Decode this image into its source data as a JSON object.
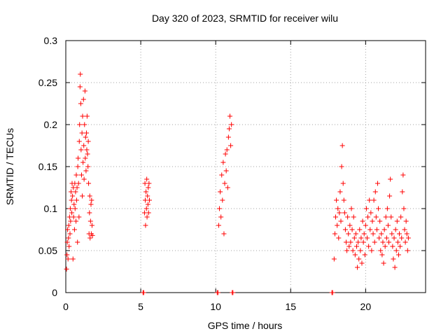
{
  "chart_data": {
    "type": "scatter",
    "title": "Day 320 of 2023, SRMTID for receiver wilu",
    "xlabel": "GPS time / hours",
    "ylabel": "SRMTID / TECUs",
    "xlim": [
      0,
      24
    ],
    "ylim": [
      0,
      0.3
    ],
    "x_ticks": [
      0,
      5,
      10,
      15,
      20
    ],
    "y_ticks": [
      0,
      0.05,
      0.1,
      0.15,
      0.2,
      0.25,
      0.3
    ],
    "x_tick_labels": [
      "0",
      "5",
      "10",
      "15",
      "20"
    ],
    "y_tick_labels": [
      "0",
      "0.05",
      "0.1",
      "0.15",
      "0.2",
      "0.25",
      "0.3"
    ],
    "grid": true,
    "marker": "+",
    "color": "#ff0000",
    "series": [
      {
        "name": "SRMTID",
        "points": [
          [
            0.05,
            0.028
          ],
          [
            0.08,
            0.045
          ],
          [
            0.1,
            0.06
          ],
          [
            0.12,
            0.075
          ],
          [
            0.15,
            0.04
          ],
          [
            0.18,
            0.065
          ],
          [
            0.2,
            0.08
          ],
          [
            0.22,
            0.055
          ],
          [
            0.25,
            0.09
          ],
          [
            0.28,
            0.07
          ],
          [
            0.3,
            0.1
          ],
          [
            0.32,
            0.085
          ],
          [
            0.35,
            0.12
          ],
          [
            0.38,
            0.11
          ],
          [
            0.4,
            0.095
          ],
          [
            0.42,
            0.13
          ],
          [
            0.45,
            0.115
          ],
          [
            0.48,
            0.04
          ],
          [
            0.5,
            0.125
          ],
          [
            0.52,
            0.09
          ],
          [
            0.55,
            0.105
          ],
          [
            0.58,
            0.075
          ],
          [
            0.6,
            0.13
          ],
          [
            0.62,
            0.1
          ],
          [
            0.65,
            0.12
          ],
          [
            0.68,
            0.085
          ],
          [
            0.7,
            0.14
          ],
          [
            0.72,
            0.11
          ],
          [
            0.75,
            0.125
          ],
          [
            0.78,
            0.06
          ],
          [
            0.8,
            0.15
          ],
          [
            0.82,
            0.16
          ],
          [
            0.85,
            0.13
          ],
          [
            0.88,
            0.09
          ],
          [
            0.9,
            0.18
          ],
          [
            0.92,
            0.2
          ],
          [
            0.95,
            0.245
          ],
          [
            0.97,
            0.26
          ],
          [
            1.0,
            0.225
          ],
          [
            1.02,
            0.17
          ],
          [
            1.05,
            0.14
          ],
          [
            1.08,
            0.19
          ],
          [
            1.1,
            0.115
          ],
          [
            1.12,
            0.21
          ],
          [
            1.15,
            0.155
          ],
          [
            1.18,
            0.23
          ],
          [
            1.2,
            0.175
          ],
          [
            1.22,
            0.135
          ],
          [
            1.25,
            0.2
          ],
          [
            1.28,
            0.24
          ],
          [
            1.3,
            0.16
          ],
          [
            1.32,
            0.185
          ],
          [
            1.35,
            0.145
          ],
          [
            1.38,
            0.19
          ],
          [
            1.4,
            0.17
          ],
          [
            1.42,
            0.21
          ],
          [
            1.45,
            0.165
          ],
          [
            1.48,
            0.15
          ],
          [
            1.5,
            0.18
          ],
          [
            1.52,
            0.13
          ],
          [
            1.55,
            0.07
          ],
          [
            1.58,
            0.095
          ],
          [
            1.6,
            0.115
          ],
          [
            1.62,
            0.065
          ],
          [
            1.65,
            0.085
          ],
          [
            1.68,
            0.105
          ],
          [
            1.7,
            0.07
          ],
          [
            1.72,
            0.11
          ],
          [
            1.75,
            0.08
          ],
          [
            1.78,
            0.068
          ],
          [
            5.15,
            0.0
          ],
          [
            5.2,
            0.0
          ],
          [
            5.25,
            0.095
          ],
          [
            5.28,
            0.13
          ],
          [
            5.3,
            0.11
          ],
          [
            5.32,
            0.08
          ],
          [
            5.35,
            0.12
          ],
          [
            5.38,
            0.1
          ],
          [
            5.4,
            0.135
          ],
          [
            5.42,
            0.09
          ],
          [
            5.45,
            0.115
          ],
          [
            5.48,
            0.105
          ],
          [
            5.5,
            0.125
          ],
          [
            5.52,
            0.095
          ],
          [
            5.55,
            0.13
          ],
          [
            5.58,
            0.11
          ],
          [
            10.1,
            0.0
          ],
          [
            10.15,
            0.0
          ],
          [
            10.2,
            0.08
          ],
          [
            10.25,
            0.1
          ],
          [
            10.3,
            0.12
          ],
          [
            10.35,
            0.09
          ],
          [
            10.4,
            0.14
          ],
          [
            10.45,
            0.11
          ],
          [
            10.5,
            0.155
          ],
          [
            10.55,
            0.07
          ],
          [
            10.6,
            0.13
          ],
          [
            10.65,
            0.165
          ],
          [
            10.7,
            0.145
          ],
          [
            10.75,
            0.17
          ],
          [
            10.8,
            0.125
          ],
          [
            10.85,
            0.185
          ],
          [
            10.9,
            0.195
          ],
          [
            10.95,
            0.21
          ],
          [
            11.0,
            0.175
          ],
          [
            11.05,
            0.2
          ],
          [
            11.1,
            0.0
          ],
          [
            11.15,
            0.0
          ],
          [
            17.75,
            0.0
          ],
          [
            17.8,
            0.0
          ],
          [
            17.9,
            0.04
          ],
          [
            17.95,
            0.07
          ],
          [
            18.0,
            0.09
          ],
          [
            18.05,
            0.11
          ],
          [
            18.1,
            0.08
          ],
          [
            18.15,
            0.1
          ],
          [
            18.2,
            0.065
          ],
          [
            18.25,
            0.095
          ],
          [
            18.3,
            0.12
          ],
          [
            18.35,
            0.085
          ],
          [
            18.4,
            0.15
          ],
          [
            18.45,
            0.175
          ],
          [
            18.5,
            0.13
          ],
          [
            18.55,
            0.11
          ],
          [
            18.6,
            0.095
          ],
          [
            18.65,
            0.075
          ],
          [
            18.7,
            0.06
          ],
          [
            18.75,
            0.05
          ],
          [
            18.8,
            0.09
          ],
          [
            18.85,
            0.07
          ],
          [
            18.9,
            0.055
          ],
          [
            18.95,
            0.08
          ],
          [
            19.0,
            0.06
          ],
          [
            19.05,
            0.1
          ],
          [
            19.1,
            0.075
          ],
          [
            19.15,
            0.05
          ],
          [
            19.2,
            0.09
          ],
          [
            19.25,
            0.065
          ],
          [
            19.3,
            0.045
          ],
          [
            19.35,
            0.07
          ],
          [
            19.4,
            0.055
          ],
          [
            19.45,
            0.03
          ],
          [
            19.5,
            0.06
          ],
          [
            19.55,
            0.04
          ],
          [
            19.6,
            0.075
          ],
          [
            19.65,
            0.05
          ],
          [
            19.7,
            0.065
          ],
          [
            19.75,
            0.035
          ],
          [
            19.8,
            0.085
          ],
          [
            19.85,
            0.06
          ],
          [
            19.9,
            0.07
          ],
          [
            19.95,
            0.045
          ],
          [
            20.0,
            0.08
          ],
          [
            20.05,
            0.1
          ],
          [
            20.1,
            0.065
          ],
          [
            20.15,
            0.09
          ],
          [
            20.2,
            0.055
          ],
          [
            20.25,
            0.11
          ],
          [
            20.3,
            0.075
          ],
          [
            20.35,
            0.095
          ],
          [
            20.4,
            0.05
          ],
          [
            20.45,
            0.085
          ],
          [
            20.5,
            0.07
          ],
          [
            20.55,
            0.11
          ],
          [
            20.6,
            0.06
          ],
          [
            20.65,
            0.12
          ],
          [
            20.7,
            0.09
          ],
          [
            20.75,
            0.075
          ],
          [
            20.8,
            0.13
          ],
          [
            20.85,
            0.1
          ],
          [
            20.9,
            0.065
          ],
          [
            20.95,
            0.085
          ],
          [
            21.0,
            0.05
          ],
          [
            21.05,
            0.07
          ],
          [
            21.1,
            0.045
          ],
          [
            21.15,
            0.06
          ],
          [
            21.2,
            0.035
          ],
          [
            21.25,
            0.075
          ],
          [
            21.3,
            0.055
          ],
          [
            21.35,
            0.09
          ],
          [
            21.4,
            0.065
          ],
          [
            21.45,
            0.1
          ],
          [
            21.5,
            0.08
          ],
          [
            21.55,
            0.06
          ],
          [
            21.6,
            0.115
          ],
          [
            21.65,
            0.135
          ],
          [
            21.7,
            0.09
          ],
          [
            21.75,
            0.07
          ],
          [
            21.8,
            0.055
          ],
          [
            21.85,
            0.04
          ],
          [
            21.9,
            0.065
          ],
          [
            21.95,
            0.03
          ],
          [
            22.0,
            0.075
          ],
          [
            22.05,
            0.05
          ],
          [
            22.1,
            0.085
          ],
          [
            22.15,
            0.06
          ],
          [
            22.2,
            0.045
          ],
          [
            22.25,
            0.07
          ],
          [
            22.3,
            0.055
          ],
          [
            22.35,
            0.09
          ],
          [
            22.4,
            0.065
          ],
          [
            22.45,
            0.12
          ],
          [
            22.5,
            0.14
          ],
          [
            22.55,
            0.1
          ],
          [
            22.6,
            0.075
          ],
          [
            22.65,
            0.06
          ],
          [
            22.7,
            0.085
          ],
          [
            22.75,
            0.07
          ],
          [
            22.8,
            0.05
          ],
          [
            22.85,
            0.065
          ]
        ]
      }
    ]
  }
}
